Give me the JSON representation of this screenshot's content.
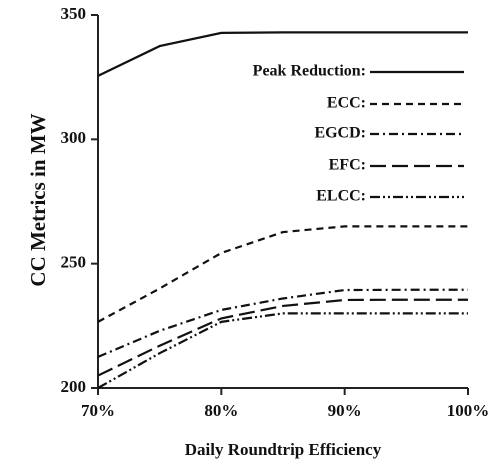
{
  "chart_data": {
    "type": "line",
    "xlabel": "Daily Roundtrip Efficiency",
    "ylabel": "CC Metrics in MW",
    "x": [
      70,
      75,
      80,
      85,
      90,
      95,
      100
    ],
    "series": [
      {
        "name": "Peak Reduction:",
        "color": "#111111",
        "dash": "none",
        "values": [
          325.5,
          337.5,
          342.8,
          343,
          343,
          343,
          343
        ]
      },
      {
        "name": "ECC:",
        "color": "#111111",
        "dash": "7 5",
        "values": [
          226.6,
          240,
          254.3,
          262.7,
          265,
          265,
          265
        ]
      },
      {
        "name": "EGCD:",
        "color": "#111111",
        "dash": "9 4 2 4",
        "values": [
          212.5,
          223,
          231.4,
          236,
          239.4,
          239.5,
          239.5
        ]
      },
      {
        "name": "EFC:",
        "color": "#111111",
        "dash": "16 6",
        "values": [
          205,
          217,
          228,
          233,
          235.4,
          235.5,
          235.5
        ]
      },
      {
        "name": "ELCC:",
        "color": "#111111",
        "dash": "10 3 2 3 2 3",
        "values": [
          200,
          214,
          226.6,
          230,
          230,
          230,
          230
        ]
      }
    ],
    "xlim": [
      70,
      100
    ],
    "xticks": [
      {
        "value": 70,
        "label": "70%"
      },
      {
        "value": 80,
        "label": "80%"
      },
      {
        "value": 90,
        "label": "90%"
      },
      {
        "value": 100,
        "label": "100%"
      }
    ],
    "ylim": [
      200,
      350
    ],
    "yticks": [
      200,
      250,
      300,
      350
    ],
    "grid": false,
    "legend": "upper right"
  }
}
